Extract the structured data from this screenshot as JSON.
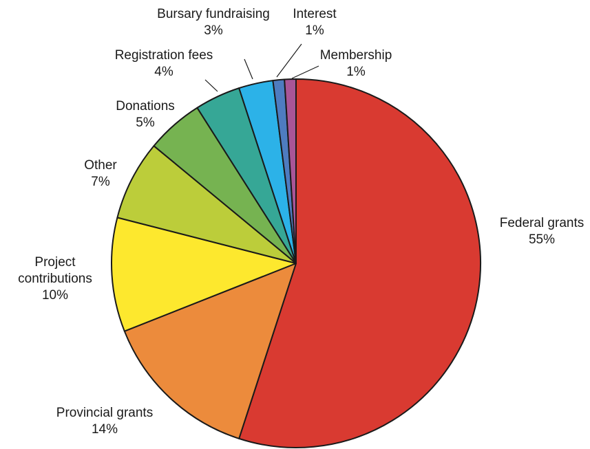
{
  "chart_data": {
    "type": "pie",
    "title": "",
    "slices": [
      {
        "label": "Federal grants",
        "value": 55,
        "value_label": "55%",
        "color": "#d93a31"
      },
      {
        "label": "Provincial grants",
        "value": 14,
        "value_label": "14%",
        "color": "#ec8b3c"
      },
      {
        "label": "Project contributions",
        "value": 10,
        "value_label": "10%",
        "color": "#fde82e"
      },
      {
        "label": "Other",
        "value": 7,
        "value_label": "7%",
        "color": "#bccd3a"
      },
      {
        "label": "Donations",
        "value": 5,
        "value_label": "5%",
        "color": "#76b351"
      },
      {
        "label": "Registration fees",
        "value": 4,
        "value_label": "4%",
        "color": "#36a796"
      },
      {
        "label": "Bursary fundraising",
        "value": 3,
        "value_label": "3%",
        "color": "#2cb2e8"
      },
      {
        "label": "Interest",
        "value": 1,
        "value_label": "1%",
        "color": "#4e7cc0"
      },
      {
        "label": "Membership",
        "value": 1,
        "value_label": "1%",
        "color": "#a95597"
      }
    ]
  }
}
